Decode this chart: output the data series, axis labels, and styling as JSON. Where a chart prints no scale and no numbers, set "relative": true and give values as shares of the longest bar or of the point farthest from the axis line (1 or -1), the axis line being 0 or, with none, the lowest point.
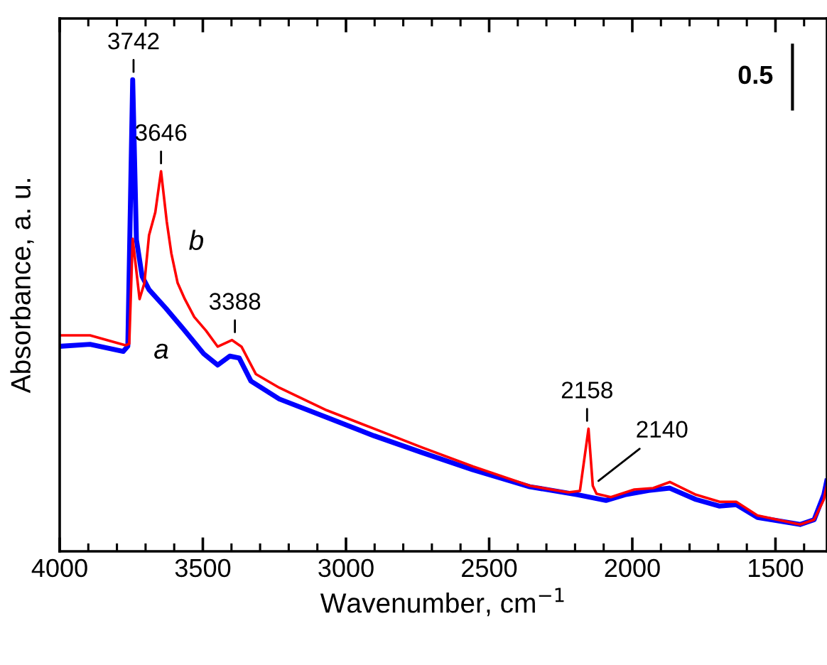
{
  "chart_data": {
    "type": "line",
    "relative": true,
    "xlabel": "Wavenumber, cm$^{−1}$",
    "ylabel": "Absorbance, a. u.",
    "xlim": [
      4000,
      1320
    ],
    "xticks": [
      4000,
      {
        "value": 3900,
        "label": null
      },
      {
        "value": 3800,
        "label": null
      },
      {
        "value": 3700,
        "label": null
      },
      {
        "value": 3600,
        "label": null
      },
      3500,
      {
        "value": 3400,
        "label": null
      },
      {
        "value": 3300,
        "label": null
      },
      {
        "value": 3200,
        "label": null
      },
      {
        "value": 3100,
        "label": null
      },
      3000,
      {
        "value": 2900,
        "label": null
      },
      {
        "value": 2800,
        "label": null
      },
      {
        "value": 2700,
        "label": null
      },
      {
        "value": 2600,
        "label": null
      },
      2500,
      {
        "value": 2400,
        "label": null
      },
      {
        "value": 2300,
        "label": null
      },
      {
        "value": 2200,
        "label": null
      },
      {
        "value": 2100,
        "label": null
      },
      2000,
      {
        "value": 1900,
        "label": null
      },
      {
        "value": 1800,
        "label": null
      },
      {
        "value": 1700,
        "label": null
      },
      {
        "value": 1600,
        "label": null
      },
      1500,
      {
        "value": 1400,
        "label": null
      }
    ],
    "grid": false,
    "legend": false,
    "marker": "none",
    "line_style": "solid",
    "tick_labels": "x",
    "series": [
      {
        "name": "a",
        "color": "#0000ff",
        "x": [
          3994,
          3894,
          3778,
          3762,
          3745,
          3732,
          3712,
          3688,
          3630,
          3563,
          3497,
          3448,
          3406,
          3373,
          3332,
          3233,
          3067,
          2902,
          2737,
          2557,
          2358,
          2191,
          2092,
          2026,
          1943,
          1869,
          1778,
          1695,
          1637,
          1563,
          1414,
          1365,
          1331,
          1321
        ],
        "values": [
          0.435,
          0.439,
          0.424,
          0.435,
          1.0,
          0.661,
          0.583,
          0.555,
          0.516,
          0.468,
          0.419,
          0.395,
          0.414,
          0.41,
          0.361,
          0.323,
          0.284,
          0.245,
          0.21,
          0.173,
          0.137,
          0.12,
          0.108,
          0.12,
          0.129,
          0.134,
          0.11,
          0.096,
          0.099,
          0.072,
          0.057,
          0.067,
          0.12,
          0.149
        ]
      },
      {
        "name": "b",
        "color": "#ff0000",
        "x": [
          3994,
          3894,
          3770,
          3757,
          3745,
          3721,
          3704,
          3688,
          3666,
          3646,
          3626,
          3610,
          3588,
          3563,
          3530,
          3489,
          3448,
          3398,
          3365,
          3315,
          3233,
          3067,
          2902,
          2737,
          2557,
          2358,
          2224,
          2183,
          2153,
          2138,
          2125,
          2075,
          1993,
          1927,
          1869,
          1778,
          1695,
          1637,
          1563,
          1414,
          1365,
          1331,
          1321
        ],
        "values": [
          0.458,
          0.458,
          0.437,
          0.44,
          0.663,
          0.535,
          0.569,
          0.67,
          0.719,
          0.806,
          0.699,
          0.632,
          0.569,
          0.535,
          0.497,
          0.468,
          0.434,
          0.448,
          0.434,
          0.376,
          0.347,
          0.299,
          0.26,
          0.221,
          0.18,
          0.139,
          0.125,
          0.128,
          0.26,
          0.139,
          0.122,
          0.115,
          0.131,
          0.134,
          0.147,
          0.12,
          0.105,
          0.105,
          0.076,
          0.057,
          0.067,
          0.11,
          0.139
        ]
      }
    ],
    "annotations": [
      {
        "text": "3742",
        "x": 3742,
        "y": 1.0
      },
      {
        "text": "3646",
        "x": 3646,
        "y": 0.806
      },
      {
        "text": "3388",
        "x": 3388,
        "y": 0.448
      },
      {
        "text": "2158",
        "x": 2158,
        "y": 0.26
      },
      {
        "text": "2140",
        "x": 2140,
        "y": 0.139
      },
      "0.5"
    ]
  }
}
